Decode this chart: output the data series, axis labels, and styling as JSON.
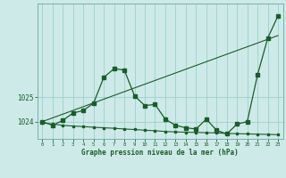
{
  "xlabel": "Graphe pression niveau de la mer (hPa)",
  "background_color": "#cdeae8",
  "grid_color": "#9ecfcb",
  "line_color": "#1a5c2a",
  "hours": [
    0,
    1,
    2,
    3,
    4,
    5,
    6,
    7,
    8,
    9,
    10,
    11,
    12,
    13,
    14,
    15,
    16,
    17,
    18,
    19,
    20,
    21,
    22,
    23
  ],
  "main_series": [
    1024.0,
    1023.85,
    1024.05,
    1024.35,
    1024.45,
    1024.75,
    1025.8,
    1026.15,
    1026.1,
    1025.05,
    1024.65,
    1024.7,
    1024.1,
    1023.85,
    1023.75,
    1023.7,
    1024.1,
    1023.65,
    1023.5,
    1023.9,
    1024.0,
    1025.9,
    1027.4,
    1028.3
  ],
  "trend_x": [
    0,
    23
  ],
  "trend_y": [
    1024.0,
    1027.5
  ],
  "flat_line_y": [
    1023.95,
    1023.9,
    1023.85,
    1023.82,
    1023.8,
    1023.77,
    1023.75,
    1023.73,
    1023.7,
    1023.68,
    1023.65,
    1023.63,
    1023.6,
    1023.58,
    1023.57,
    1023.56,
    1023.55,
    1023.54,
    1023.52,
    1023.51,
    1023.5,
    1023.49,
    1023.48,
    1023.47
  ],
  "ylim_min": 1023.3,
  "ylim_max": 1028.8,
  "yticks": [
    1024,
    1025
  ],
  "xticks": [
    0,
    1,
    2,
    3,
    4,
    5,
    6,
    7,
    8,
    9,
    10,
    11,
    12,
    13,
    14,
    15,
    16,
    17,
    18,
    19,
    20,
    21,
    22,
    23
  ]
}
